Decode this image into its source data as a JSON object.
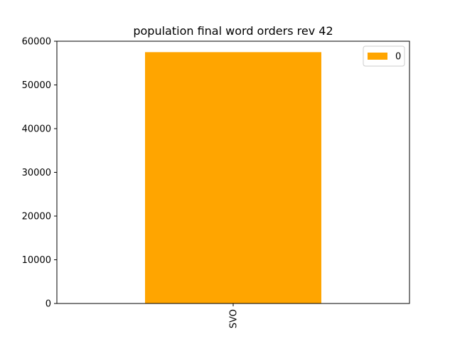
{
  "chart_data": {
    "type": "bar",
    "title": "population final word orders rev 42",
    "categories": [
      "SVO"
    ],
    "series": [
      {
        "name": "0",
        "values": [
          57500
        ],
        "color": "#ffa500"
      }
    ],
    "xlabel": "",
    "ylabel": "",
    "ylim": [
      0,
      60000
    ],
    "yticks": [
      0,
      10000,
      20000,
      30000,
      40000,
      50000,
      60000
    ],
    "grid": false,
    "legend": {
      "position": "top-right",
      "entries": [
        "0"
      ]
    },
    "x_tick_rotation": "vertical"
  }
}
